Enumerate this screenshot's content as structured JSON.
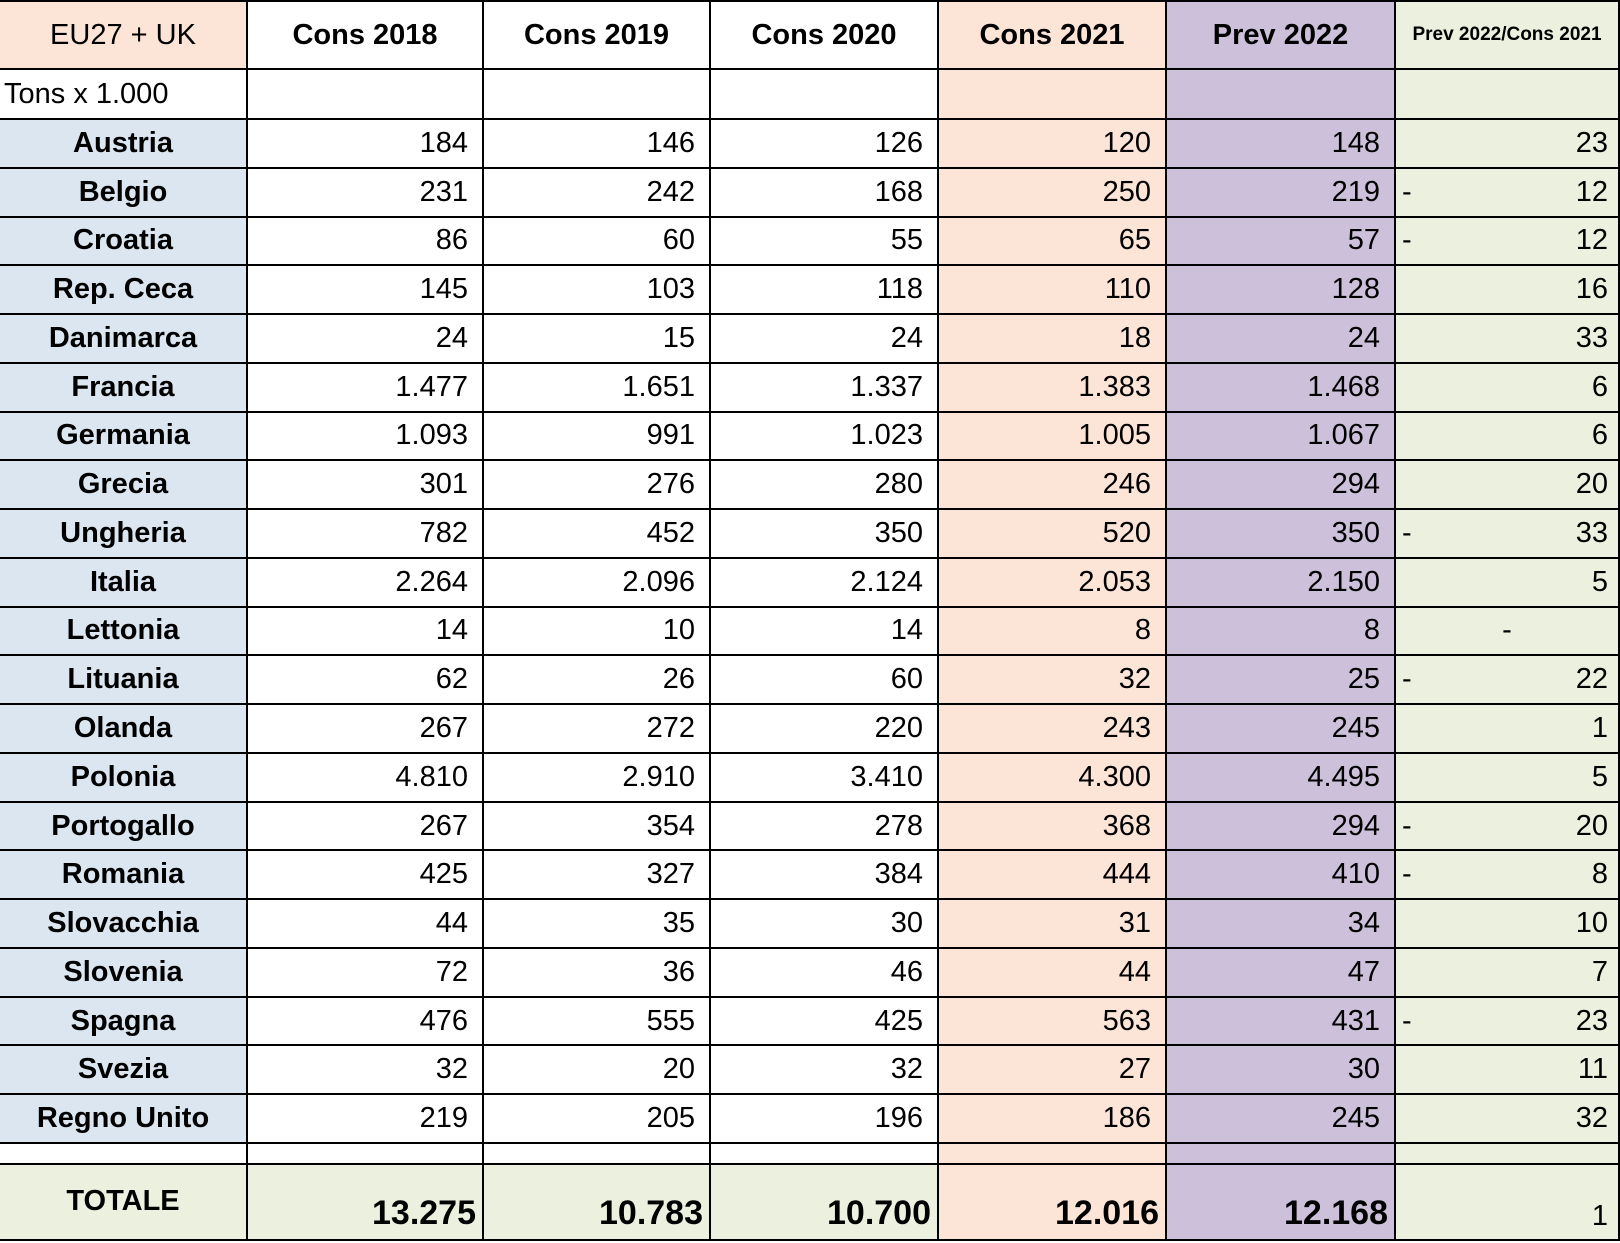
{
  "table": {
    "corner": "EU27 + UK",
    "unit": "Tons x 1.000",
    "columns": [
      "Cons 2018",
      "Cons 2019",
      "Cons 2020",
      "Cons 2021",
      "Prev 2022",
      "Prev 2022/Cons 2021"
    ],
    "rows": [
      {
        "label": "Austria",
        "cells": [
          "184",
          "146",
          "126",
          "120",
          "148"
        ],
        "change": "23"
      },
      {
        "label": "Belgio",
        "cells": [
          "231",
          "242",
          "168",
          "250",
          "219"
        ],
        "sign": "-",
        "change": "12"
      },
      {
        "label": "Croatia",
        "cells": [
          "86",
          "60",
          "55",
          "65",
          "57"
        ],
        "sign": "-",
        "change": "12"
      },
      {
        "label": "Rep. Ceca",
        "cells": [
          "145",
          "103",
          "118",
          "110",
          "128"
        ],
        "change": "16"
      },
      {
        "label": "Danimarca",
        "cells": [
          "24",
          "15",
          "24",
          "18",
          "24"
        ],
        "change": "33"
      },
      {
        "label": "Francia",
        "cells": [
          "1.477",
          "1.651",
          "1.337",
          "1.383",
          "1.468"
        ],
        "change": "6"
      },
      {
        "label": "Germania",
        "cells": [
          "1.093",
          "991",
          "1.023",
          "1.005",
          "1.067"
        ],
        "change": "6"
      },
      {
        "label": "Grecia",
        "cells": [
          "301",
          "276",
          "280",
          "246",
          "294"
        ],
        "change": "20"
      },
      {
        "label": "Ungheria",
        "cells": [
          "782",
          "452",
          "350",
          "520",
          "350"
        ],
        "sign": "-",
        "change": "33"
      },
      {
        "label": "Italia",
        "cells": [
          "2.264",
          "2.096",
          "2.124",
          "2.053",
          "2.150"
        ],
        "change": "5"
      },
      {
        "label": "Lettonia",
        "cells": [
          "14",
          "10",
          "14",
          "8",
          "8"
        ],
        "change_centered": "-"
      },
      {
        "label": "Lituania",
        "cells": [
          "62",
          "26",
          "60",
          "32",
          "25"
        ],
        "sign": "-",
        "change": "22"
      },
      {
        "label": "Olanda",
        "cells": [
          "267",
          "272",
          "220",
          "243",
          "245"
        ],
        "change": "1"
      },
      {
        "label": "Polonia",
        "cells": [
          "4.810",
          "2.910",
          "3.410",
          "4.300",
          "4.495"
        ],
        "change": "5"
      },
      {
        "label": "Portogallo",
        "cells": [
          "267",
          "354",
          "278",
          "368",
          "294"
        ],
        "sign": "-",
        "change": "20"
      },
      {
        "label": "Romania",
        "cells": [
          "425",
          "327",
          "384",
          "444",
          "410"
        ],
        "sign": "-",
        "change": "8"
      },
      {
        "label": "Slovacchia",
        "cells": [
          "44",
          "35",
          "30",
          "31",
          "34"
        ],
        "change": "10"
      },
      {
        "label": "Slovenia",
        "cells": [
          "72",
          "36",
          "46",
          "44",
          "47"
        ],
        "change": "7"
      },
      {
        "label": "Spagna",
        "cells": [
          "476",
          "555",
          "425",
          "563",
          "431"
        ],
        "sign": "-",
        "change": "23"
      },
      {
        "label": "Svezia",
        "cells": [
          "32",
          "20",
          "32",
          "27",
          "30"
        ],
        "change": "11"
      },
      {
        "label": "Regno Unito",
        "cells": [
          "219",
          "205",
          "196",
          "186",
          "245"
        ],
        "change": "32"
      }
    ],
    "total": {
      "label": "TOTALE",
      "cells": [
        "13.275",
        "10.783",
        "10.700",
        "12.016",
        "12.168"
      ],
      "change": "1"
    }
  }
}
